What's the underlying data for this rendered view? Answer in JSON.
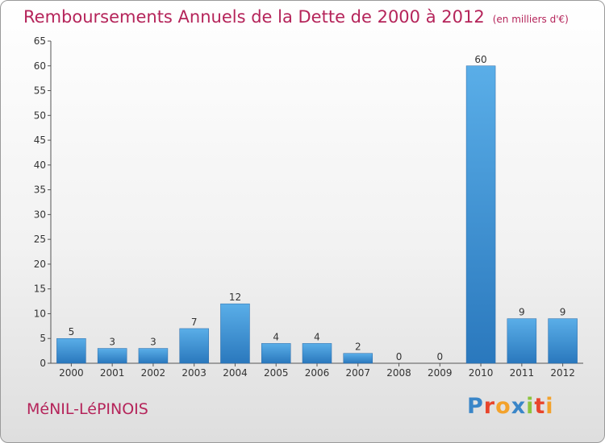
{
  "header": {
    "title": "Remboursements Annuels de la Dette de 2000 à 2012",
    "subtitle": "(en milliers d'€)"
  },
  "footer": {
    "commune": "MéNIL-LéPINOIS",
    "brand_letters": [
      "P",
      "r",
      "o",
      "x",
      "i",
      "t",
      "i"
    ]
  },
  "colors": {
    "title": "#b5245a",
    "bar_top": "#5aaee8",
    "bar_bottom": "#2a78bd"
  },
  "chart_data": {
    "type": "bar",
    "title": "Remboursements Annuels de la Dette de 2000 à 2012",
    "subtitle": "(en milliers d'€)",
    "categories": [
      "2000",
      "2001",
      "2002",
      "2003",
      "2004",
      "2005",
      "2006",
      "2007",
      "2008",
      "2009",
      "2010",
      "2011",
      "2012"
    ],
    "values": [
      5,
      3,
      3,
      7,
      12,
      4,
      4,
      2,
      0,
      0,
      60,
      9,
      9
    ],
    "ylim": [
      0,
      65
    ],
    "yticks": [
      0,
      5,
      10,
      15,
      20,
      25,
      30,
      35,
      40,
      45,
      50,
      55,
      60,
      65
    ],
    "grid": false,
    "data_labels": true
  }
}
